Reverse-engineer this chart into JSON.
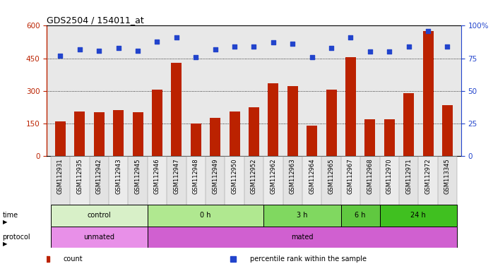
{
  "title": "GDS2504 / 154011_at",
  "samples": [
    "GSM112931",
    "GSM112935",
    "GSM112942",
    "GSM112943",
    "GSM112945",
    "GSM112946",
    "GSM112947",
    "GSM112948",
    "GSM112949",
    "GSM112950",
    "GSM112952",
    "GSM112962",
    "GSM112963",
    "GSM112964",
    "GSM112965",
    "GSM112967",
    "GSM112968",
    "GSM112970",
    "GSM112971",
    "GSM112972",
    "GSM113345"
  ],
  "counts": [
    160,
    205,
    200,
    210,
    200,
    305,
    430,
    148,
    175,
    205,
    225,
    335,
    320,
    138,
    305,
    455,
    170,
    168,
    290,
    575,
    235
  ],
  "percentiles": [
    77,
    82,
    81,
    83,
    81,
    88,
    91,
    76,
    82,
    84,
    84,
    87,
    86,
    76,
    83,
    91,
    80,
    80,
    84,
    96,
    84
  ],
  "ylim_left": [
    0,
    600
  ],
  "ylim_right": [
    0,
    100
  ],
  "yticks_left": [
    0,
    150,
    300,
    450,
    600
  ],
  "yticks_right": [
    0,
    25,
    50,
    75,
    100
  ],
  "bar_color": "#bb2200",
  "dot_color": "#2244cc",
  "bg_color": "#e8e8e8",
  "time_groups": [
    {
      "label": "control",
      "start": 0,
      "end": 5,
      "color": "#d8f0c8"
    },
    {
      "label": "0 h",
      "start": 5,
      "end": 11,
      "color": "#b0e890"
    },
    {
      "label": "3 h",
      "start": 11,
      "end": 15,
      "color": "#80d860"
    },
    {
      "label": "6 h",
      "start": 15,
      "end": 17,
      "color": "#60c840"
    },
    {
      "label": "24 h",
      "start": 17,
      "end": 21,
      "color": "#40c020"
    }
  ],
  "protocol_groups": [
    {
      "label": "unmated",
      "start": 0,
      "end": 5,
      "color": "#e890e8"
    },
    {
      "label": "mated",
      "start": 5,
      "end": 21,
      "color": "#d060d0"
    }
  ],
  "legend_items": [
    {
      "color": "#bb2200",
      "label": "count"
    },
    {
      "color": "#2244cc",
      "label": "percentile rank within the sample"
    }
  ]
}
